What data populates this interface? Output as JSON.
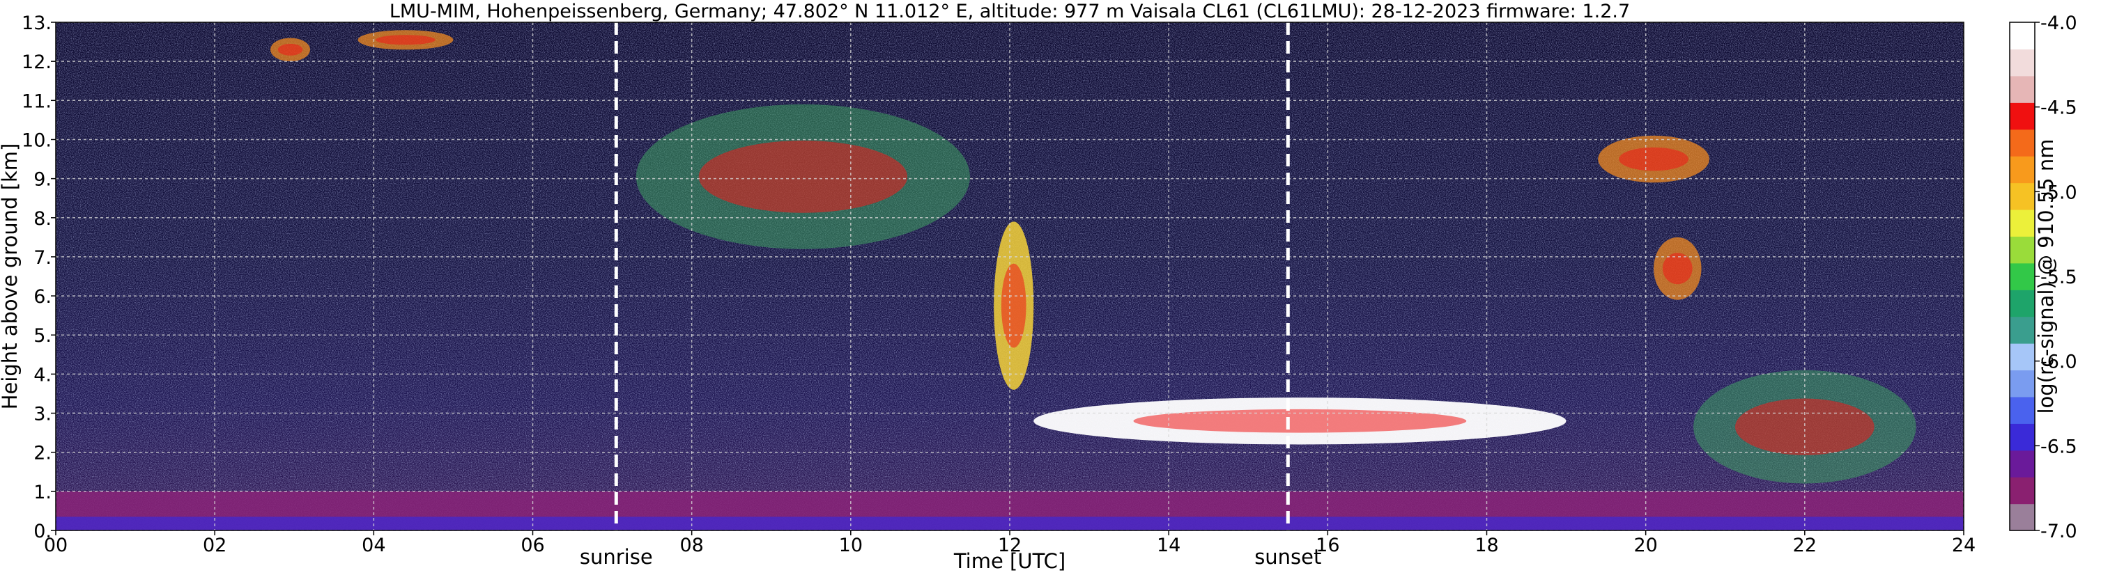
{
  "chart_data": {
    "type": "heatmap",
    "title": "LMU-MIM, Hohenpeissenberg, Germany; 47.802° N 11.012° E, altitude: 977 m    Vaisala CL61 (CL61LMU): 28-12-2023    firmware: 1.2.7",
    "xlabel": "Time [UTC]",
    "ylabel": "Height above ground [km]",
    "xlim": [
      0,
      24
    ],
    "ylim": [
      0,
      13
    ],
    "x_ticks": [
      "00",
      "02",
      "04",
      "06",
      "08",
      "10",
      "12",
      "14",
      "16",
      "18",
      "20",
      "22",
      "24"
    ],
    "y_ticks": [
      "0.",
      "1.",
      "2.",
      "3.",
      "4.",
      "5.",
      "6.",
      "7.",
      "8.",
      "9.",
      "10.",
      "11.",
      "12.",
      "13."
    ],
    "grid": true,
    "colorbar": {
      "label": "log(rc-signal) @ 910.55 nm",
      "range": [
        -7.0,
        -4.0
      ],
      "ticks": [
        "-7.0",
        "-6.5",
        "-6.0",
        "-5.5",
        "-5.0",
        "-4.5",
        "-4.0"
      ],
      "colors": [
        "#9a7f9a",
        "#8a2070",
        "#6a1a9a",
        "#3a2ad8",
        "#4a62ee",
        "#7a9cf0",
        "#a6c6f8",
        "#3a9e8e",
        "#1ea46a",
        "#32c848",
        "#9adc3a",
        "#ecf03a",
        "#f6c224",
        "#f89a1c",
        "#f46a1a",
        "#f01010",
        "#e6b6b6",
        "#f2dcdc",
        "#ffffff"
      ]
    },
    "annotations": [
      {
        "label": "sunrise",
        "x": 7.05
      },
      {
        "label": "sunset",
        "x": 15.5
      }
    ],
    "features": [
      {
        "kind": "cloud",
        "time": [
          2.7,
          3.2
        ],
        "height": [
          12.0,
          12.6
        ]
      },
      {
        "kind": "cloud",
        "time": [
          3.8,
          5.0
        ],
        "height": [
          12.3,
          12.8
        ]
      },
      {
        "kind": "cloud_layer",
        "time": [
          7.3,
          11.5
        ],
        "height": [
          7.2,
          10.9
        ]
      },
      {
        "kind": "descending_layer",
        "time": [
          11.8,
          12.3
        ],
        "height": [
          3.6,
          7.9
        ]
      },
      {
        "kind": "cloud_base_layer",
        "time": [
          12.3,
          19.0
        ],
        "height": [
          2.2,
          3.4
        ]
      },
      {
        "kind": "cloud",
        "time": [
          19.4,
          20.8
        ],
        "height": [
          8.9,
          10.1
        ]
      },
      {
        "kind": "cloud",
        "time": [
          20.1,
          20.7
        ],
        "height": [
          5.9,
          7.5
        ]
      },
      {
        "kind": "cloud_layer",
        "time": [
          20.6,
          23.4
        ],
        "height": [
          1.2,
          4.1
        ]
      },
      {
        "kind": "boundary_layer",
        "time": [
          0,
          24
        ],
        "height": [
          0,
          1.0
        ]
      }
    ]
  }
}
